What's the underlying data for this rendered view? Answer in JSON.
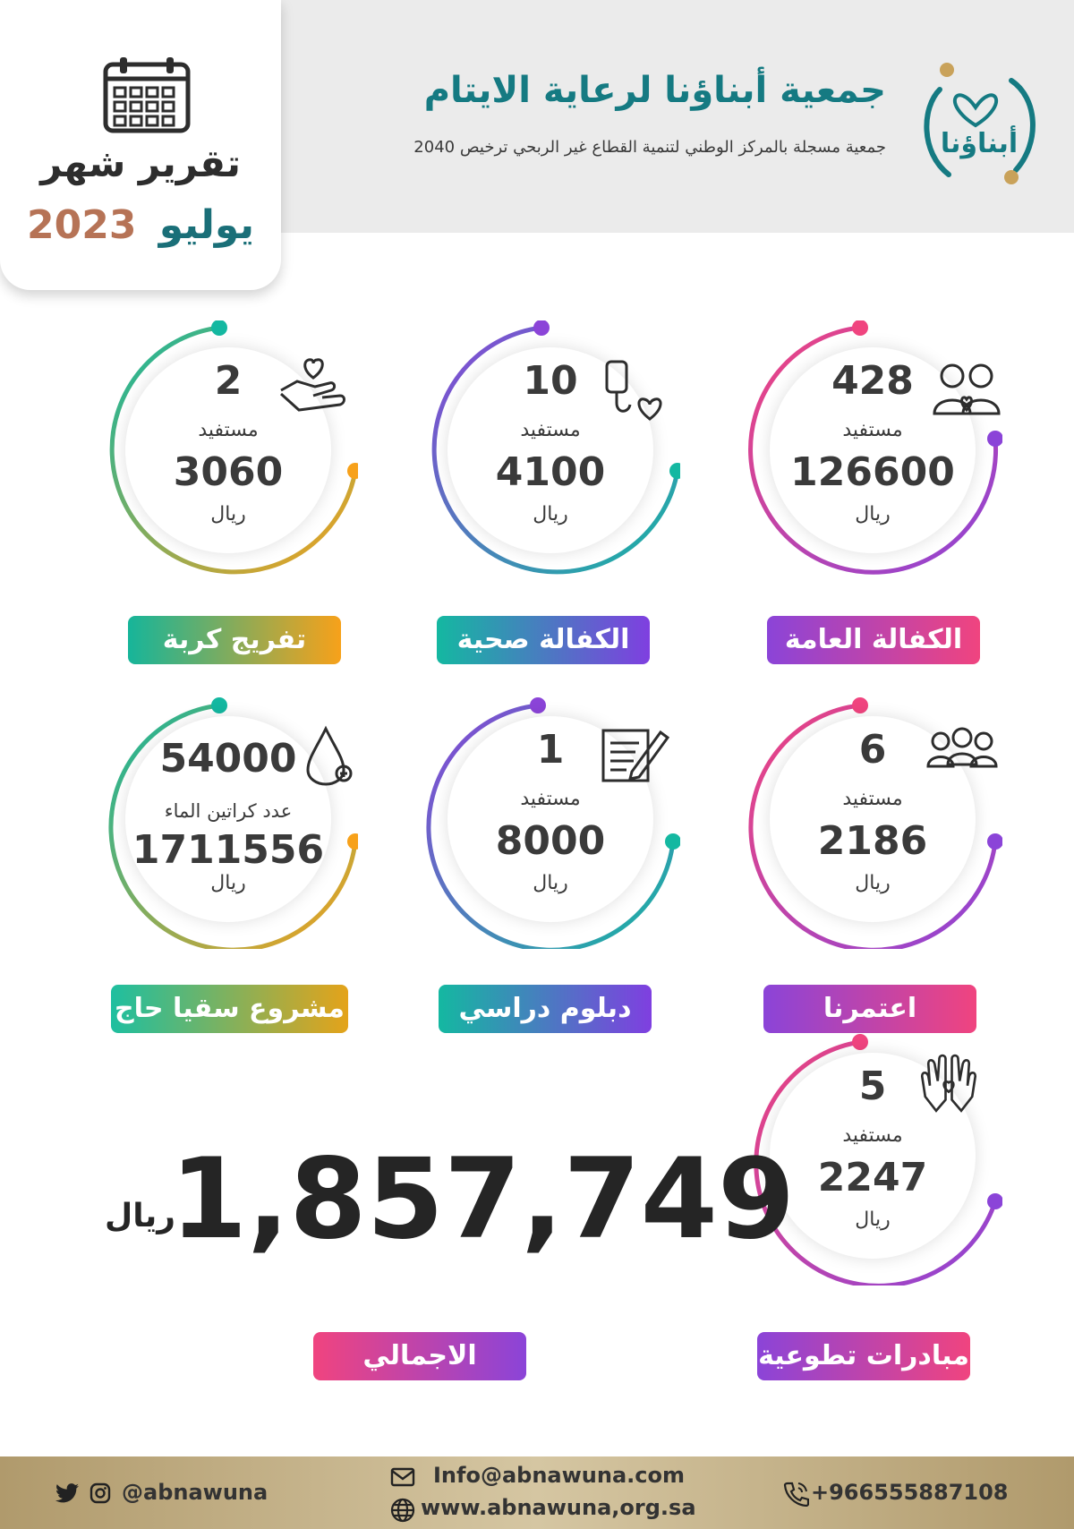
{
  "report": {
    "title": "تقرير شهر",
    "month": "يوليو",
    "year": "2023"
  },
  "organization": {
    "logo_text": "أبناؤنا",
    "name": "جمعية أبناؤنا لرعاية الايتام",
    "subtitle": "جمعية مسجلة بالمركز الوطني لتنمية القطاع غير الربحي ترخيص 2040"
  },
  "stats": [
    {
      "label": "الكفالة العامة",
      "count": "428",
      "unit_label": "مستفيد",
      "amount": "126600",
      "currency": "ريال",
      "icon": "two-people-heart-icon"
    },
    {
      "label": "الكفالة صحية",
      "count": "10",
      "unit_label": "مستفيد",
      "amount": "4100",
      "currency": "ريال",
      "icon": "iv-bag-heart-icon"
    },
    {
      "label": "تفريج كربة",
      "count": "2",
      "unit_label": "مستفيد",
      "amount": "3060",
      "currency": "ريال",
      "icon": "hand-heart-icon"
    },
    {
      "label": "اعتمرنا",
      "count": "6",
      "unit_label": "مستفيد",
      "amount": "2186",
      "currency": "ريال",
      "icon": "group-people-icon"
    },
    {
      "label": "دبلوم دراسي",
      "count": "1",
      "unit_label": "مستفيد",
      "amount": "8000",
      "currency": "ريال",
      "icon": "document-pen-icon"
    },
    {
      "label": "مشروع سقيا حاج",
      "count": "54000",
      "unit_label": "عدد كراتين الماء",
      "amount": "1711556",
      "currency": "ريال",
      "icon": "water-drop-icon"
    },
    {
      "label": "مبادرات تطوعية",
      "count": "5",
      "unit_label": "مستفيد",
      "amount": "2247",
      "currency": "ريال",
      "icon": "hands-heart-icon"
    }
  ],
  "total": {
    "amount": "1,857,749",
    "currency": "ريال",
    "label": "الاجمالي"
  },
  "footer": {
    "social_handle": "@abnawuna",
    "email": "Info@abnawuna.com",
    "website": "www.abnawuna,org.sa",
    "phone": "+966555887108"
  },
  "colors": {
    "teal_brand": "#157a82",
    "pink": "#f0447f",
    "purple": "#8b44d8",
    "teal": "#14b8a1",
    "orange": "#f7a11a",
    "gold_footer": "#b09a6c"
  }
}
